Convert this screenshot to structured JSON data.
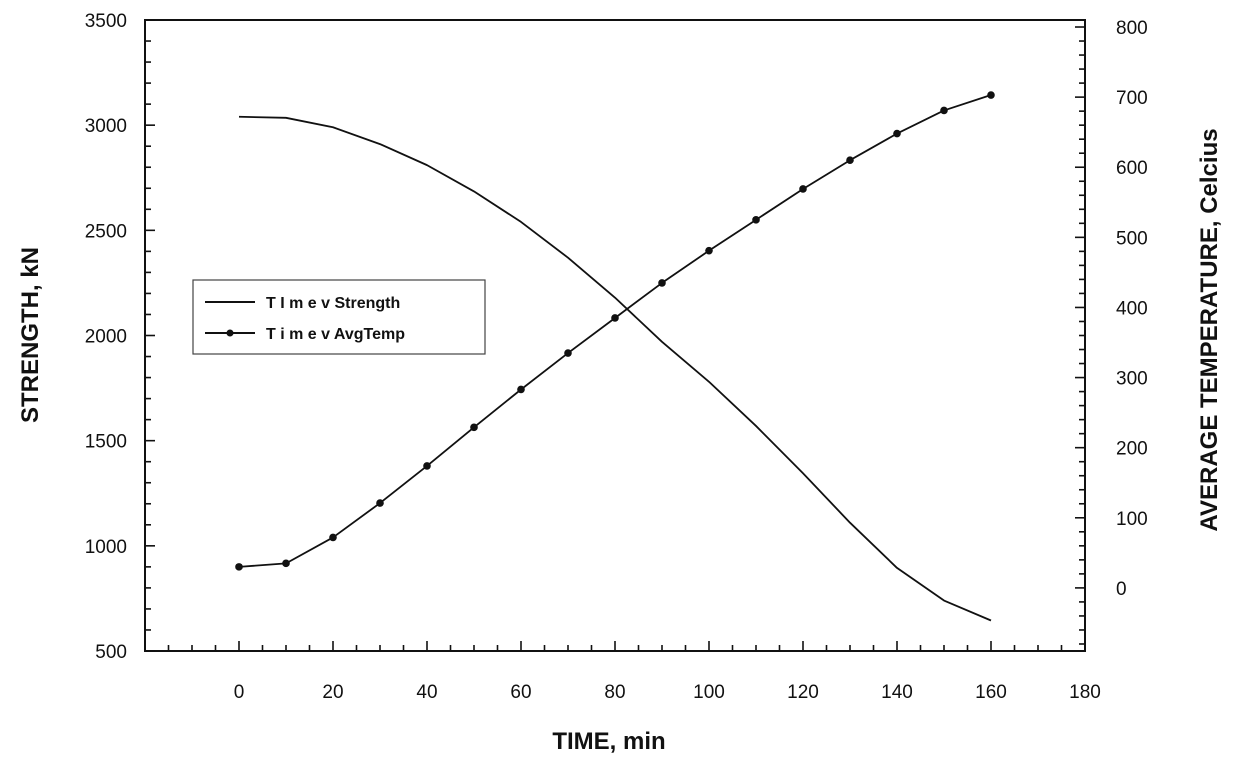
{
  "chart_data": {
    "type": "line",
    "xlabel": "TIME, min",
    "ylabel_left": "STRENGTH, kN",
    "ylabel_right": "AVERAGE TEMPERATURE, Celcius",
    "xlim": [
      -20,
      180
    ],
    "ylim_left": [
      500,
      3500
    ],
    "ylim_right": [
      -90,
      810
    ],
    "x_ticks": [
      0,
      20,
      40,
      60,
      80,
      100,
      120,
      140,
      160,
      180
    ],
    "y_ticks_left": [
      500,
      1000,
      1500,
      2000,
      2500,
      3000,
      3500
    ],
    "y_ticks_right": [
      0,
      100,
      200,
      300,
      400,
      500,
      600,
      700,
      800
    ],
    "legend_position": "left-middle",
    "grid": false,
    "series": [
      {
        "name": "T I m e v Strength",
        "axis": "left",
        "markers": false,
        "x": [
          0,
          10,
          20,
          30,
          40,
          50,
          60,
          70,
          80,
          90,
          100,
          110,
          120,
          130,
          140,
          150,
          160
        ],
        "values": [
          3040,
          3035,
          2990,
          2910,
          2810,
          2685,
          2540,
          2370,
          2180,
          1970,
          1780,
          1570,
          1345,
          1110,
          895,
          740,
          645
        ]
      },
      {
        "name": "T i m e v AvgTemp",
        "axis": "right",
        "markers": true,
        "x": [
          0,
          10,
          20,
          30,
          40,
          50,
          60,
          70,
          80,
          90,
          100,
          110,
          120,
          130,
          140,
          150,
          160
        ],
        "values": [
          30,
          35,
          72,
          121,
          174,
          229,
          283,
          335,
          385,
          435,
          481,
          525,
          569,
          610,
          648,
          681,
          703
        ]
      }
    ]
  }
}
